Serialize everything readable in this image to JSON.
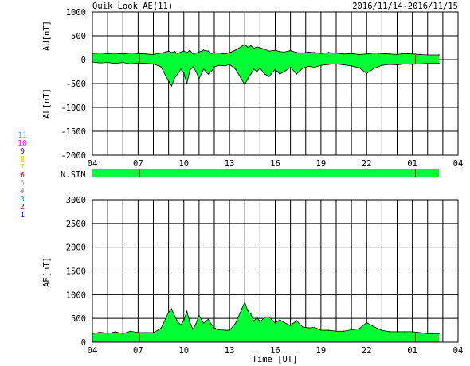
{
  "header": {
    "title": "Quik Look AE(11)",
    "date_range": "2016/11/14-2016/11/15"
  },
  "colors": {
    "fill": "#00ff33",
    "outline": "#000000",
    "grid": "#000000",
    "marker": "#ff0000",
    "background": "#ffffff"
  },
  "station_legend": [
    {
      "label": "11",
      "color": "#33cccc"
    },
    {
      "label": "10",
      "color": "#ff00ff"
    },
    {
      "label": "9",
      "color": "#3333cc"
    },
    {
      "label": "8",
      "color": "#e6cc00"
    },
    {
      "label": "7",
      "color": "#cccc66"
    },
    {
      "label": "6",
      "color": "#ff0000"
    },
    {
      "label": "5",
      "color": "#aaaaaa"
    },
    {
      "label": "4",
      "color": "#999999"
    },
    {
      "label": "3",
      "color": "#00aaaa"
    },
    {
      "label": "2",
      "color": "#aa00aa"
    },
    {
      "label": "1",
      "color": "#0000cc"
    }
  ],
  "station_bar": {
    "label": "N.STN",
    "coverage_hours": [
      4,
      26.75
    ],
    "markers_at_hours": [
      7.1,
      25.2
    ]
  },
  "chart_data": [
    {
      "type": "area",
      "panel": "AU/AL",
      "ylabel_upper": "AU[nT]",
      "ylabel_lower": "AL[nT]",
      "ylim": [
        -2000,
        1000
      ],
      "yticks": [
        1000,
        500,
        0,
        -500,
        -1000,
        -1500,
        -2000
      ],
      "xlim": [
        4,
        28
      ],
      "xticks": [
        "04",
        "07",
        "10",
        "13",
        "16",
        "19",
        "22",
        "01",
        "04"
      ],
      "grid": true,
      "markers_at_hours": [
        7.1,
        25.2
      ],
      "x": [
        4,
        4.5,
        5,
        5.5,
        6,
        6.5,
        7,
        7.5,
        8,
        8.5,
        8.8,
        9,
        9.2,
        9.4,
        9.6,
        9.8,
        10,
        10.2,
        10.4,
        10.6,
        10.8,
        11,
        11.3,
        11.6,
        11.8,
        12,
        12.3,
        12.7,
        13,
        13.4,
        13.8,
        14,
        14.2,
        14.4,
        14.6,
        14.8,
        15,
        15.3,
        15.6,
        16,
        16.3,
        16.6,
        17,
        17.4,
        17.8,
        18.2,
        18.6,
        19,
        19.5,
        20,
        20.5,
        21,
        21.5,
        22,
        22.5,
        23,
        23.5,
        24,
        24.5,
        25,
        25.5,
        26,
        26.75
      ],
      "series": [
        {
          "name": "AU",
          "values": [
            130,
            140,
            125,
            135,
            120,
            140,
            130,
            120,
            110,
            140,
            160,
            180,
            150,
            170,
            130,
            160,
            180,
            150,
            200,
            120,
            140,
            160,
            200,
            180,
            130,
            150,
            140,
            120,
            150,
            200,
            280,
            320,
            260,
            290,
            240,
            270,
            250,
            220,
            180,
            200,
            170,
            160,
            190,
            150,
            140,
            160,
            150,
            130,
            150,
            140,
            120,
            130,
            110,
            120,
            140,
            130,
            120,
            110,
            130,
            120,
            110,
            100,
            100
          ]
        },
        {
          "name": "AL",
          "values": [
            -50,
            -70,
            -60,
            -80,
            -60,
            -90,
            -70,
            -80,
            -90,
            -150,
            -330,
            -450,
            -550,
            -380,
            -300,
            -200,
            -280,
            -500,
            -220,
            -150,
            -250,
            -400,
            -200,
            -300,
            -250,
            -150,
            -120,
            -130,
            -100,
            -200,
            -420,
            -520,
            -400,
            -300,
            -200,
            -250,
            -180,
            -300,
            -350,
            -200,
            -300,
            -250,
            -160,
            -300,
            -180,
            -140,
            -160,
            -120,
            -100,
            -90,
            -110,
            -130,
            -170,
            -290,
            -180,
            -120,
            -100,
            -110,
            -90,
            -100,
            -90,
            -80,
            -80
          ]
        }
      ]
    },
    {
      "type": "area",
      "panel": "AE",
      "ylabel": "AE[nT]",
      "xlabel": "Time [UT]",
      "ylim": [
        0,
        3000
      ],
      "yticks": [
        3000,
        2500,
        2000,
        1500,
        1000,
        500,
        0
      ],
      "xlim": [
        4,
        28
      ],
      "xticks": [
        "04",
        "07",
        "10",
        "13",
        "16",
        "19",
        "22",
        "01",
        "04"
      ],
      "grid": true,
      "markers_at_hours": [
        7.1,
        25.2
      ],
      "x": [
        4,
        4.5,
        5,
        5.5,
        6,
        6.5,
        7,
        7.5,
        8,
        8.5,
        8.8,
        9,
        9.2,
        9.4,
        9.6,
        9.8,
        10,
        10.2,
        10.4,
        10.6,
        10.8,
        11,
        11.3,
        11.6,
        11.8,
        12,
        12.3,
        12.7,
        13,
        13.4,
        13.8,
        14,
        14.2,
        14.4,
        14.6,
        14.8,
        15,
        15.3,
        15.6,
        16,
        16.3,
        16.6,
        17,
        17.4,
        17.8,
        18.2,
        18.6,
        19,
        19.5,
        20,
        20.5,
        21,
        21.5,
        22,
        22.5,
        23,
        23.5,
        24,
        24.5,
        25,
        25.5,
        26,
        26.75
      ],
      "series": [
        {
          "name": "AE",
          "values": [
            180,
            210,
            185,
            215,
            180,
            230,
            200,
            200,
            200,
            290,
            490,
            630,
            700,
            550,
            430,
            360,
            460,
            650,
            420,
            270,
            390,
            560,
            400,
            480,
            380,
            300,
            260,
            250,
            250,
            400,
            700,
            840,
            660,
            590,
            440,
            520,
            430,
            520,
            530,
            400,
            470,
            410,
            350,
            450,
            320,
            300,
            310,
            250,
            250,
            230,
            230,
            260,
            280,
            410,
            320,
            250,
            220,
            220,
            220,
            220,
            200,
            180,
            180
          ]
        }
      ]
    }
  ]
}
